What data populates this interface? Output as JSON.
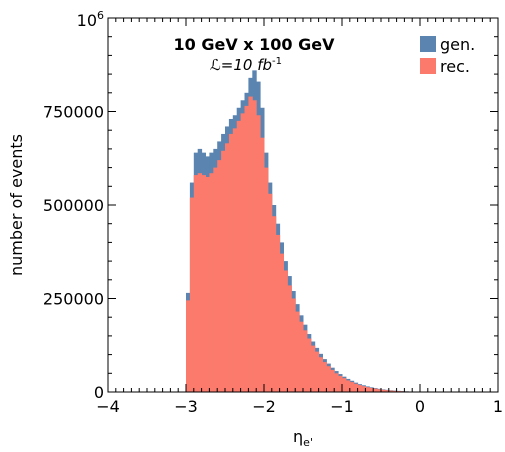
{
  "chart_data": {
    "type": "bar",
    "title": "10 GeV x 100 GeV",
    "subtitle_main": "ℒ=10 fb",
    "subtitle_sup": "-1",
    "xlabel_main": "η",
    "xlabel_sub": "e'",
    "ylabel": "number of events",
    "xlim": [
      -4,
      1
    ],
    "ylim": [
      0,
      1000000
    ],
    "x_tick_values": [
      -4,
      -3,
      -2,
      -1,
      0,
      1
    ],
    "x_tick_labels": [
      "−4",
      "−3",
      "−2",
      "−1",
      "0",
      "1"
    ],
    "y_tick_values": [
      0,
      250000,
      500000,
      750000
    ],
    "y_tick_labels": [
      "0",
      "250000",
      "500000",
      "750000"
    ],
    "y_top_label_base": "10",
    "y_top_label_exp": "6",
    "bin_width": 0.05,
    "bin_starts": [
      -3.0,
      -2.95,
      -2.9,
      -2.85,
      -2.8,
      -2.75,
      -2.7,
      -2.65,
      -2.6,
      -2.55,
      -2.5,
      -2.45,
      -2.4,
      -2.35,
      -2.3,
      -2.25,
      -2.2,
      -2.15,
      -2.1,
      -2.05,
      -2.0,
      -1.95,
      -1.9,
      -1.85,
      -1.8,
      -1.75,
      -1.7,
      -1.65,
      -1.6,
      -1.55,
      -1.5,
      -1.45,
      -1.4,
      -1.35,
      -1.3,
      -1.25,
      -1.2,
      -1.15,
      -1.1,
      -1.05,
      -1.0,
      -0.95,
      -0.9,
      -0.85,
      -0.8,
      -0.75,
      -0.7,
      -0.65,
      -0.6,
      -0.55,
      -0.5,
      -0.45,
      -0.4,
      -0.35,
      -0.3,
      -0.25,
      -0.2,
      -0.15,
      -0.1,
      -0.05,
      0.0,
      0.05,
      0.1,
      0.15,
      0.2
    ],
    "series": [
      {
        "name": "gen.",
        "color": "#5b84b1",
        "values": [
          265000,
          560000,
          640000,
          650000,
          640000,
          630000,
          640000,
          650000,
          670000,
          690000,
          710000,
          730000,
          740000,
          760000,
          780000,
          800000,
          840000,
          860000,
          830000,
          760000,
          640000,
          560000,
          500000,
          450000,
          400000,
          350000,
          310000,
          270000,
          235000,
          205000,
          180000,
          155000,
          135000,
          118000,
          102000,
          88000,
          76000,
          65000,
          56000,
          48000,
          41000,
          35000,
          30000,
          25000,
          21000,
          18000,
          15000,
          12500,
          10500,
          8500,
          7000,
          5800,
          4600,
          3700,
          3000,
          2300,
          1800,
          1300,
          1000,
          700,
          500,
          350,
          220,
          130,
          60
        ]
      },
      {
        "name": "rec.",
        "color": "#fb7a6c",
        "values": [
          245000,
          520000,
          580000,
          585000,
          580000,
          575000,
          585000,
          600000,
          620000,
          645000,
          665000,
          690000,
          705000,
          725000,
          745000,
          765000,
          790000,
          780000,
          740000,
          680000,
          600000,
          530000,
          470000,
          420000,
          370000,
          325000,
          285000,
          250000,
          215000,
          188000,
          165000,
          143000,
          124000,
          108000,
          93000,
          80000,
          69000,
          59000,
          50000,
          43000,
          37000,
          31000,
          26500,
          22000,
          18500,
          15500,
          13000,
          10800,
          9000,
          7300,
          6000,
          4900,
          3900,
          3100,
          2500,
          1900,
          1500,
          1100,
          800,
          550,
          380,
          250,
          160,
          90,
          40
        ]
      }
    ],
    "legend_position": "top-right",
    "grid": false
  }
}
